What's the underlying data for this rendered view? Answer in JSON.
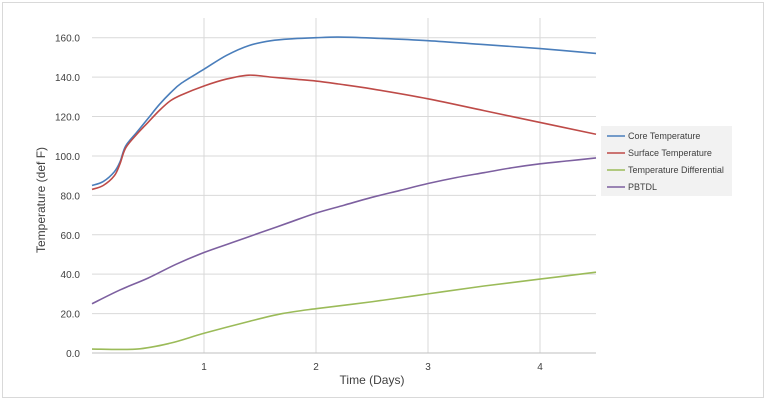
{
  "chart_data": {
    "type": "line",
    "title": "",
    "xlabel": "Time (Days)",
    "ylabel": "Temperature (def F)",
    "xlim": [
      0,
      4.5
    ],
    "ylim": [
      0,
      170
    ],
    "x_ticks": [
      1,
      2,
      3,
      4
    ],
    "x_tick_labels": [
      "1",
      "2",
      "3",
      "4"
    ],
    "y_ticks": [
      0,
      20,
      40,
      60,
      80,
      100,
      120,
      140,
      160
    ],
    "y_tick_labels": [
      "0.0",
      "20.0",
      "40.0",
      "60.0",
      "80.0",
      "100.0",
      "120.0",
      "140.0",
      "160.0"
    ],
    "grid": true,
    "legend_position": "right",
    "series": [
      {
        "name": "Core Temperature",
        "color": "#4a7ebb",
        "points": [
          [
            0,
            85
          ],
          [
            0.1,
            87
          ],
          [
            0.2,
            92
          ],
          [
            0.25,
            97
          ],
          [
            0.3,
            105
          ],
          [
            0.4,
            112
          ],
          [
            0.5,
            119
          ],
          [
            0.6,
            126
          ],
          [
            0.7,
            132
          ],
          [
            0.8,
            137
          ],
          [
            1.0,
            144
          ],
          [
            1.2,
            151
          ],
          [
            1.4,
            156
          ],
          [
            1.6,
            158.5
          ],
          [
            1.8,
            159.5
          ],
          [
            2.0,
            160
          ],
          [
            2.2,
            160.3
          ],
          [
            2.5,
            159.8
          ],
          [
            3.0,
            158.5
          ],
          [
            3.5,
            156.5
          ],
          [
            4.0,
            154.5
          ],
          [
            4.5,
            152
          ]
        ]
      },
      {
        "name": "Surface Temperature",
        "color": "#be4b48",
        "points": [
          [
            0,
            83
          ],
          [
            0.1,
            85
          ],
          [
            0.2,
            90
          ],
          [
            0.25,
            96
          ],
          [
            0.3,
            104
          ],
          [
            0.4,
            111
          ],
          [
            0.5,
            117
          ],
          [
            0.6,
            123
          ],
          [
            0.7,
            128
          ],
          [
            0.8,
            131
          ],
          [
            1.0,
            135.5
          ],
          [
            1.2,
            139
          ],
          [
            1.4,
            141
          ],
          [
            1.6,
            140
          ],
          [
            1.8,
            139
          ],
          [
            2.0,
            138
          ],
          [
            2.2,
            136.5
          ],
          [
            2.5,
            134
          ],
          [
            3.0,
            129
          ],
          [
            3.5,
            123
          ],
          [
            4.0,
            117
          ],
          [
            4.5,
            111
          ]
        ]
      },
      {
        "name": "Temperature Differential",
        "color": "#9bbb59",
        "points": [
          [
            0,
            2
          ],
          [
            0.4,
            2
          ],
          [
            0.7,
            5
          ],
          [
            1.0,
            10
          ],
          [
            1.4,
            16
          ],
          [
            1.7,
            20
          ],
          [
            2.0,
            22.5
          ],
          [
            2.5,
            26
          ],
          [
            3.0,
            30
          ],
          [
            3.5,
            34
          ],
          [
            4.0,
            37.5
          ],
          [
            4.5,
            41
          ]
        ]
      },
      {
        "name": "PBTDL",
        "color": "#7d60a0",
        "points": [
          [
            0,
            25
          ],
          [
            0.25,
            32
          ],
          [
            0.5,
            38
          ],
          [
            0.75,
            45
          ],
          [
            1.0,
            51
          ],
          [
            1.25,
            56
          ],
          [
            1.5,
            61
          ],
          [
            1.75,
            66
          ],
          [
            2.0,
            71
          ],
          [
            2.25,
            75
          ],
          [
            2.5,
            79
          ],
          [
            2.75,
            82.5
          ],
          [
            3.0,
            86
          ],
          [
            3.25,
            89
          ],
          [
            3.5,
            91.5
          ],
          [
            3.75,
            94
          ],
          [
            4.0,
            96
          ],
          [
            4.25,
            97.5
          ],
          [
            4.5,
            99
          ]
        ]
      }
    ]
  }
}
